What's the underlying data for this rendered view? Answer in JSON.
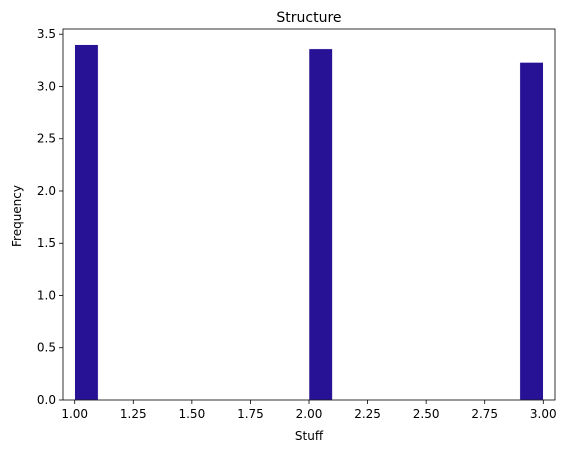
{
  "chart_data": {
    "type": "bar",
    "title": "Structure",
    "xlabel": "Stuff",
    "ylabel": "Frequency",
    "xlim": [
      0.95,
      3.05
    ],
    "ylim": [
      0,
      3.55
    ],
    "grid": false,
    "bar_color": "#271296",
    "bars": [
      {
        "x_start": 1.0,
        "x_end": 1.1,
        "value": 3.4
      },
      {
        "x_start": 2.0,
        "x_end": 2.1,
        "value": 3.36
      },
      {
        "x_start": 2.9,
        "x_end": 3.0,
        "value": 3.23
      }
    ],
    "x_ticks": [
      1.0,
      1.25,
      1.5,
      1.75,
      2.0,
      2.25,
      2.5,
      2.75,
      3.0
    ],
    "x_tick_labels": [
      "1.00",
      "1.25",
      "1.50",
      "1.75",
      "2.00",
      "2.25",
      "2.50",
      "2.75",
      "3.00"
    ],
    "y_ticks": [
      0,
      0.5,
      1.0,
      1.5,
      2.0,
      2.5,
      3.0,
      3.5
    ],
    "y_tick_labels": [
      "0.0",
      "0.5",
      "1.0",
      "1.5",
      "2.0",
      "2.5",
      "3.0",
      "3.5"
    ]
  }
}
